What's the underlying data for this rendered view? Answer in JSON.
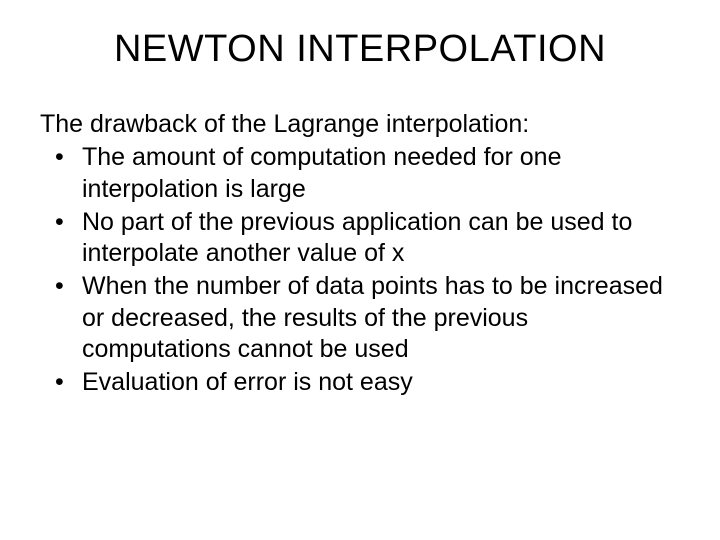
{
  "slide": {
    "title": "NEWTON INTERPOLATION",
    "intro": "The drawback of the Lagrange interpolation:",
    "bullets": [
      "The amount of computation needed for one interpolation is large",
      "No part of the previous application can be used to interpolate another value of x",
      "When the number of data points has to be increased or decreased, the results of the previous computations cannot be used",
      "Evaluation of error is not easy"
    ]
  },
  "style": {
    "background_color": "#ffffff",
    "text_color": "#000000",
    "title_fontsize": 38,
    "body_fontsize": 25,
    "font_family": "Arial"
  }
}
